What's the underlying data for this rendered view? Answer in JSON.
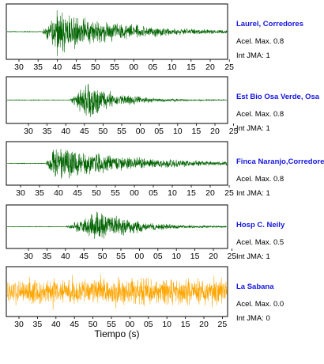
{
  "chart_data": {
    "type": "line",
    "xlabel": "Tiempo (s)",
    "panels": [
      {
        "station": "Laurel, Corredores",
        "accel_label": "Acel. Max. 0.8",
        "jma_label": "Int JMA: 1",
        "color": "#006400",
        "tick_labels": [
          "30",
          "35",
          "40",
          "45",
          "50",
          "55",
          "00",
          "05",
          "10",
          "15",
          "20",
          "25"
        ],
        "arrival_tick_offset": 1.2,
        "peak_tick_offset": 2.0,
        "decay": 3.2,
        "noise": 0.02,
        "seed": 11
      },
      {
        "station": "Est Bio Osa Verde, Osa",
        "accel_label": "Acel. Max. 0.8",
        "jma_label": "Int JMA: 1",
        "color": "#006400",
        "tick_labels": [
          "30",
          "35",
          "40",
          "45",
          "50",
          "55",
          "00",
          "05",
          "10",
          "15",
          "20",
          "25"
        ],
        "arrival_tick_offset": 2.2,
        "peak_tick_offset": 3.2,
        "decay": 1.6,
        "noise": 0.02,
        "seed": 23
      },
      {
        "station": "Finca Naranjo,Corredores",
        "accel_label": "Acel. Max. 0.8",
        "jma_label": "Int JMA: 1",
        "color": "#006400",
        "tick_labels": [
          "30",
          "35",
          "40",
          "45",
          "50",
          "55",
          "00",
          "05",
          "10",
          "15",
          "20",
          "25"
        ],
        "arrival_tick_offset": 1.3,
        "peak_tick_offset": 1.8,
        "decay": 4.2,
        "noise": 0.02,
        "seed": 37
      },
      {
        "station": "Hosp C. Neily",
        "accel_label": "Acel. Max. 0.5",
        "jma_label": "Int JMA: 1",
        "color": "#006400",
        "tick_labels": [
          "30",
          "35",
          "40",
          "45",
          "50",
          "55",
          "00",
          "05",
          "10",
          "15",
          "20",
          "25"
        ],
        "arrival_tick_offset": 2.0,
        "peak_tick_offset": 4.0,
        "decay": 1.8,
        "noise": 0.02,
        "seed": 53
      },
      {
        "station": "La Sabana",
        "accel_label": "Acel. Max. 0.0",
        "jma_label": "Int JMA: 0",
        "color": "#ffa500",
        "tick_labels": [
          "30",
          "35",
          "40",
          "45",
          "50",
          "55",
          "00",
          "05",
          "10",
          "15",
          "20",
          "25"
        ],
        "arrival_tick_offset": 0.0,
        "peak_tick_offset": 0.0,
        "decay": 0.0,
        "noise": 0.85,
        "seed": 71
      }
    ]
  }
}
